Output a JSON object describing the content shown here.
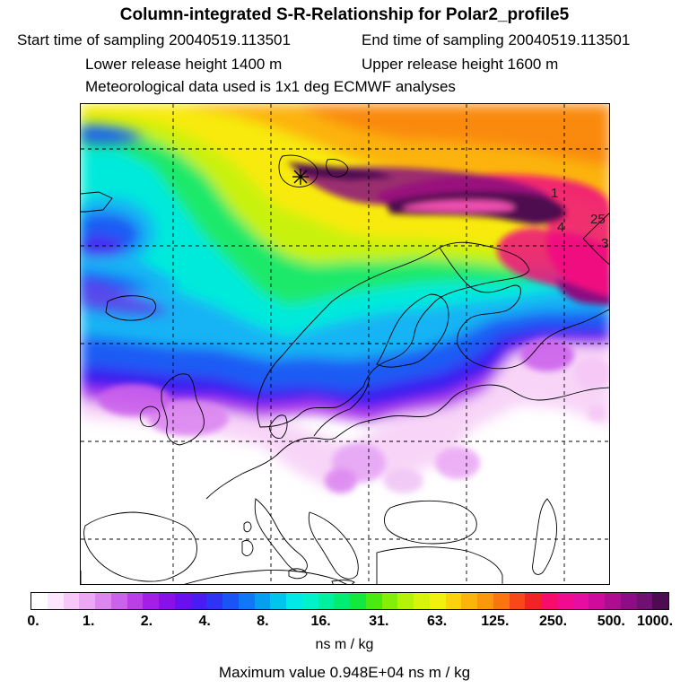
{
  "header": {
    "title": "Column-integrated S-R-Relationship for Polar2_profile5",
    "start_time": "Start time of sampling 20040519.113501",
    "end_time": "End time of sampling 20040519.113501",
    "lower_release": "Lower release height 1400 m",
    "upper_release": "Upper release height 1600 m",
    "met_data": "Meteorological data used is 1x1 deg ECMWF analyses"
  },
  "map": {
    "contour_labels": [
      "1",
      "4",
      "25",
      "3"
    ],
    "receptor_marker": "star-icon"
  },
  "legend": {
    "ticks": [
      "0.",
      "1.",
      "2.",
      "4.",
      "8.",
      "16.",
      "31.",
      "63.",
      "125.",
      "250.",
      "500.",
      "1000."
    ],
    "colors": [
      "#ffffff",
      "#ffe6ff",
      "#f7c8f7",
      "#eba8f5",
      "#dc86f0",
      "#cc62ec",
      "#bb3ee8",
      "#a51ee6",
      "#8b10e6",
      "#6a10ec",
      "#4a1cf0",
      "#2e34f2",
      "#1a55f4",
      "#0f78f4",
      "#079ef2",
      "#00c4f0",
      "#00e8e8",
      "#00f2c8",
      "#00f0a0",
      "#00ec72",
      "#14e83c",
      "#48ea12",
      "#82ee0a",
      "#b4f20a",
      "#d8f40c",
      "#f2f010",
      "#fad20e",
      "#fcb40c",
      "#fc960c",
      "#fa7410",
      "#f74818",
      "#f02424",
      "#f40e6a",
      "#f00c8e",
      "#e40ea4",
      "#cc0c9e",
      "#b00c92",
      "#900c84",
      "#701070",
      "#4e0c50"
    ],
    "units": "ns m / kg",
    "max_value": "Maximum value  0.948E+04 ns m / kg"
  }
}
